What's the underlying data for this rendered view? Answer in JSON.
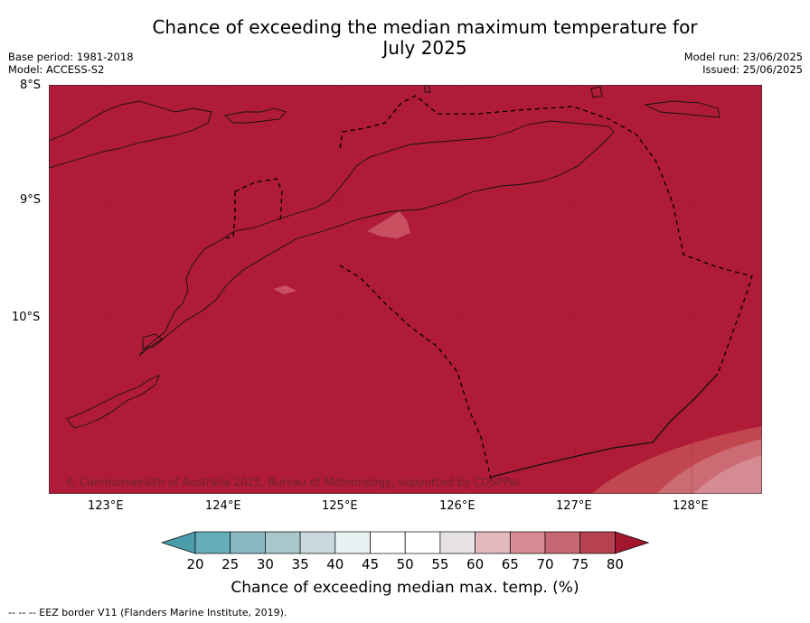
{
  "title": "Chance of exceeding the median maximum temperature for July 2025",
  "title_line1": "Chance of exceeding the median maximum temperature for",
  "title_line2": "July 2025",
  "meta_left": {
    "base_period": "Base period: 1981-2018",
    "model": "Model: ACCESS-S2"
  },
  "meta_right": {
    "model_run": "Model run: 23/06/2025",
    "issued": "Issued: 25/06/2025"
  },
  "map": {
    "lat_labels": [
      "8°S",
      "9°S",
      "10°S"
    ],
    "lon_labels": [
      "123°E",
      "124°E",
      "125°E",
      "126°E",
      "127°E",
      "128°E"
    ],
    "copyright": "© Commonwealth of Australia 2025, Bureau of Meteorology, supported by COSPPac",
    "dominant_category": "> 80%",
    "colors": {
      "above_80": "#b01c37",
      "band_75_80": "#c1464f",
      "band_70_75": "#cc6b73",
      "band_65_70": "#d68b92"
    }
  },
  "colorbar": {
    "label": "Chance of exceeding median max. temp. (%)",
    "ticks": [
      "20",
      "25",
      "30",
      "35",
      "40",
      "45",
      "50",
      "55",
      "60",
      "65",
      "70",
      "75",
      "80"
    ],
    "colors": [
      "#4c9daa",
      "#66adb9",
      "#8ab7c2",
      "#a8c7cc",
      "#c8d8dc",
      "#e9f1f2",
      "#ffffff",
      "#ffffff",
      "#e7e3e4",
      "#e2b9bf",
      "#d68b92",
      "#c66773",
      "#b6424f",
      "#a3162d"
    ]
  },
  "footer": "-- -- -- EEZ border V11 (Flanders Marine Institute, 2019)."
}
